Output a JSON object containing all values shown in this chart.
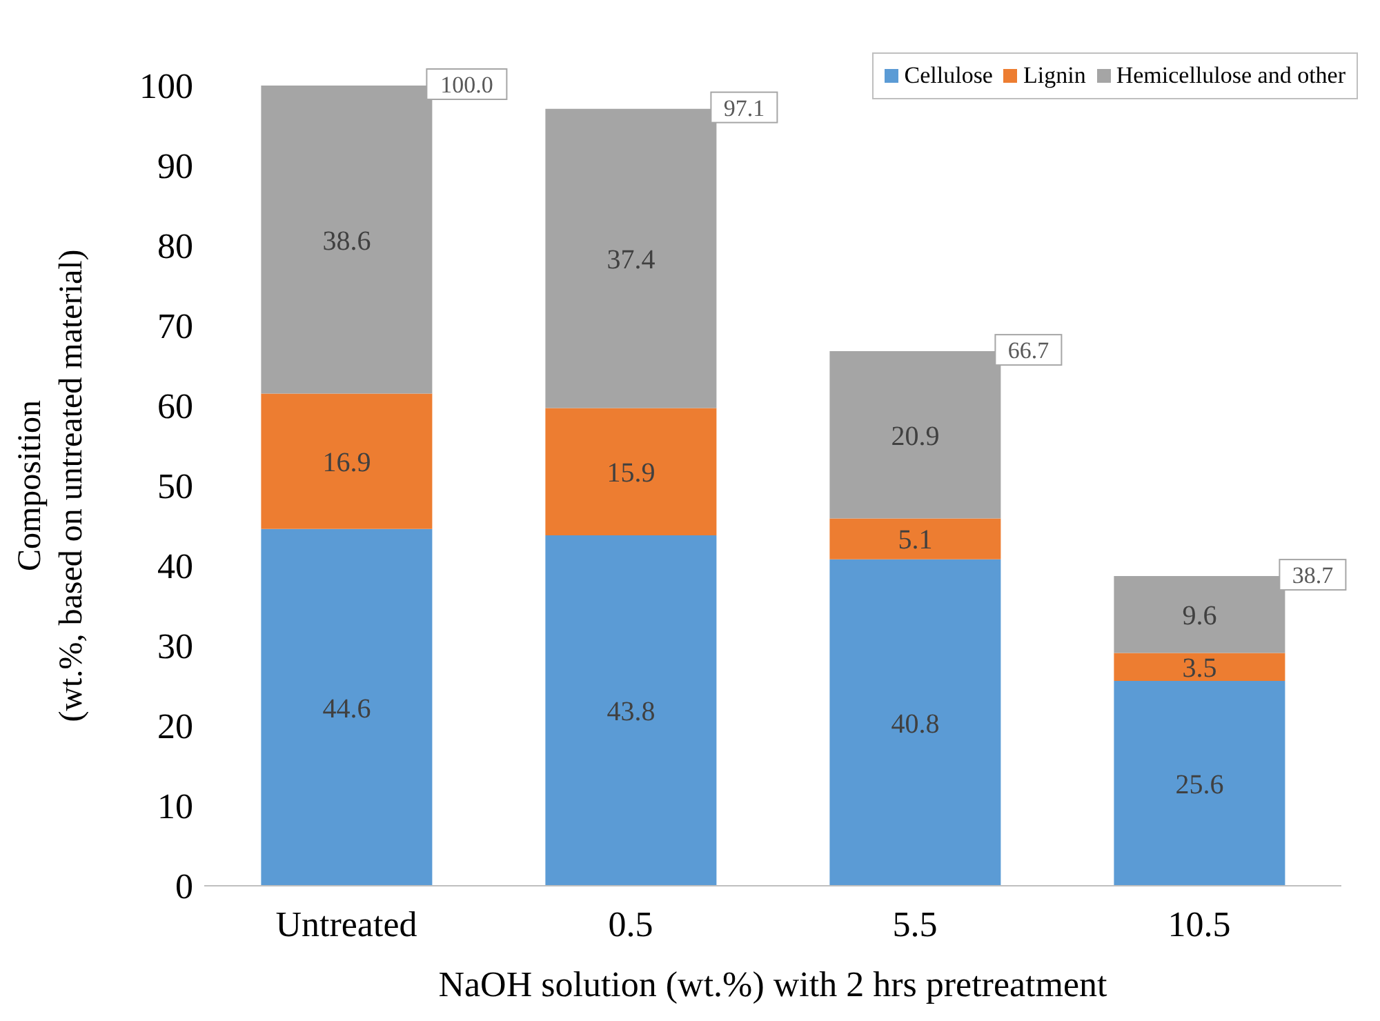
{
  "chart_data": {
    "type": "bar",
    "stacked": true,
    "xlabel": "NaOH solution (wt.%) with 2 hrs pretreatment",
    "ylabel": "Composition\n(wt.%, based on untreated material)",
    "categories": [
      "Untreated",
      "0.5",
      "5.5",
      "10.5"
    ],
    "series": [
      {
        "name": "Cellulose",
        "color": "#5b9bd5",
        "values": [
          44.6,
          43.8,
          40.8,
          25.6
        ]
      },
      {
        "name": "Lignin",
        "color": "#ed7d31",
        "values": [
          16.9,
          15.9,
          5.1,
          3.5
        ]
      },
      {
        "name": "Hemicellulose and other",
        "color": "#a5a5a5",
        "values": [
          38.6,
          37.4,
          20.9,
          9.6
        ]
      }
    ],
    "totals": [
      "100.0",
      "97.1",
      "66.7",
      "38.7"
    ],
    "data_labels": true,
    "ylim": [
      0,
      100
    ],
    "yticks": [
      0,
      10,
      20,
      30,
      40,
      50,
      60,
      70,
      80,
      90,
      100
    ],
    "grid": false,
    "legend": "top right"
  }
}
